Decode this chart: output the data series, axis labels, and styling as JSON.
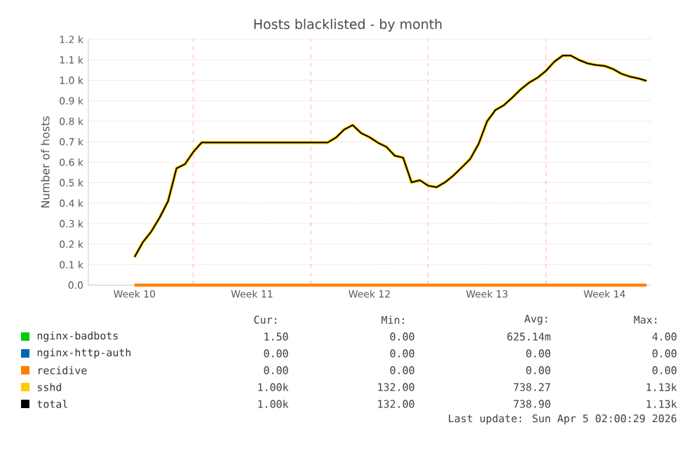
{
  "chart_data": {
    "type": "line",
    "title": "Hosts blacklisted - by month",
    "ylabel": "Number of hosts",
    "categories": [
      null,
      null,
      null,
      null,
      null,
      "Week 10",
      null,
      null,
      null,
      null,
      null,
      null,
      null,
      null,
      null,
      null,
      null,
      null,
      null,
      "Week 11",
      null,
      null,
      null,
      null,
      null,
      null,
      null,
      null,
      null,
      null,
      null,
      null,
      null,
      "Week 12",
      null,
      null,
      null,
      null,
      null,
      null,
      null,
      null,
      null,
      null,
      null,
      null,
      null,
      "Week 13",
      null,
      null,
      null,
      null,
      null,
      null,
      null,
      null,
      null,
      null,
      null,
      null,
      null,
      "Week 14",
      null,
      null,
      null,
      null,
      null
    ],
    "ylim": [
      0,
      1200
    ],
    "yticks": [
      {
        "value": 0,
        "label": "0.0"
      },
      {
        "value": 100,
        "label": "0.1 k"
      },
      {
        "value": 200,
        "label": "0.2 k"
      },
      {
        "value": 300,
        "label": "0.3 k"
      },
      {
        "value": 400,
        "label": "0.4 k"
      },
      {
        "value": 500,
        "label": "0.5 k"
      },
      {
        "value": 600,
        "label": "0.6 k"
      },
      {
        "value": 700,
        "label": "0.7 k"
      },
      {
        "value": 800,
        "label": "0.8 k"
      },
      {
        "value": 900,
        "label": "0.9 k"
      },
      {
        "value": 1000,
        "label": "1.0 k"
      },
      {
        "value": 1100,
        "label": "1.1 k"
      },
      {
        "value": 1200,
        "label": "1.2 k"
      }
    ],
    "grid": true,
    "legend": "bottom",
    "marker": "none",
    "line_style": "solid",
    "series": [
      {
        "name": "nginx-badbots",
        "color": "#00cc00",
        "values": [
          null,
          null,
          null,
          null,
          null,
          null,
          null,
          null,
          null,
          null,
          null,
          null,
          null,
          null,
          null,
          null,
          null,
          null,
          null,
          null,
          null,
          null,
          null,
          null,
          null,
          null,
          null,
          null,
          null,
          null,
          null,
          null,
          null,
          null,
          null,
          null,
          null,
          null,
          null,
          null,
          null,
          null,
          null,
          null,
          null,
          null,
          null,
          null,
          null,
          null,
          null,
          null,
          null,
          null,
          null,
          null,
          null,
          null,
          null,
          null,
          null,
          null,
          null,
          null,
          null,
          null,
          null
        ]
      },
      {
        "name": "nginx-http-auth",
        "color": "#0066b3",
        "values": [
          null,
          null,
          null,
          null,
          null,
          null,
          null,
          null,
          null,
          null,
          null,
          null,
          null,
          null,
          null,
          null,
          null,
          null,
          null,
          null,
          null,
          null,
          null,
          null,
          null,
          null,
          null,
          null,
          null,
          null,
          null,
          null,
          null,
          null,
          null,
          null,
          null,
          null,
          null,
          null,
          null,
          null,
          null,
          null,
          null,
          null,
          null,
          null,
          null,
          null,
          null,
          null,
          null,
          null,
          null,
          null,
          null,
          null,
          null,
          null,
          null,
          null,
          null,
          null,
          null,
          null,
          null
        ]
      },
      {
        "name": "recidive",
        "color": "#ff8000",
        "values": [
          null,
          null,
          null,
          null,
          null,
          0,
          0,
          0,
          0,
          0,
          0,
          0,
          0,
          0,
          0,
          0,
          0,
          0,
          0,
          0,
          0,
          0,
          0,
          0,
          0,
          0,
          0,
          0,
          0,
          0,
          0,
          0,
          0,
          0,
          0,
          0,
          0,
          0,
          0,
          0,
          0,
          0,
          0,
          0,
          0,
          0,
          0,
          0,
          0,
          0,
          0,
          0,
          0,
          0,
          0,
          0,
          0,
          0,
          0,
          0,
          0,
          0,
          0,
          0,
          0,
          0,
          0
        ]
      },
      {
        "name": "sshd",
        "color": "#ffcc00",
        "values": [
          null,
          null,
          null,
          null,
          null,
          137,
          210,
          262,
          330,
          410,
          570,
          590,
          650,
          696,
          696,
          696,
          696,
          696,
          696,
          696,
          696,
          696,
          696,
          696,
          696,
          696,
          696,
          696,
          696,
          720,
          760,
          781,
          742,
          722,
          695,
          675,
          632,
          622,
          502,
          512,
          485,
          478,
          502,
          535,
          575,
          616,
          690,
          799,
          855,
          878,
          915,
          955,
          988,
          1012,
          1045,
          1090,
          1120,
          1120,
          1098,
          1082,
          1074,
          1070,
          1055,
          1032,
          1018,
          1009,
          997
        ]
      },
      {
        "name": "total",
        "color": "#000000",
        "values": [
          null,
          null,
          null,
          null,
          null,
          137,
          210,
          262,
          330,
          410,
          570,
          590,
          650,
          696,
          696,
          696,
          696,
          696,
          696,
          696,
          696,
          696,
          696,
          696,
          696,
          696,
          696,
          696,
          696,
          720,
          760,
          781,
          742,
          722,
          695,
          675,
          632,
          622,
          502,
          512,
          485,
          478,
          502,
          535,
          575,
          616,
          690,
          799,
          855,
          878,
          915,
          955,
          988,
          1012,
          1045,
          1090,
          1120,
          1120,
          1098,
          1082,
          1074,
          1070,
          1055,
          1032,
          1018,
          1009,
          997
        ]
      }
    ],
    "annotations": [
      "Cur:",
      "Min:",
      "Avg:",
      "Max:",
      "1.50",
      "0.00",
      "625.14m",
      "4.00",
      "0.00",
      "0.00",
      "0.00",
      "0.00",
      "0.00",
      "0.00",
      "0.00",
      "0.00",
      "1.00k",
      "132.00",
      "738.27",
      "1.13k",
      "1.00k",
      "132.00",
      "738.90",
      "1.13k",
      "Last update: Sun Apr  5 02:00:29 2026"
    ]
  }
}
